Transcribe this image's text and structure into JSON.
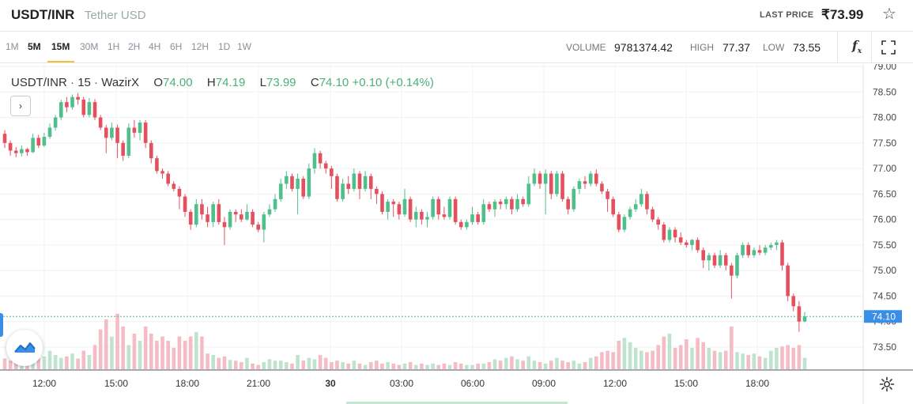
{
  "header": {
    "pair": "USDT/INR",
    "pair_name": "Tether USD",
    "last_price_label": "LAST PRICE",
    "last_price": "₹73.99"
  },
  "toolbar": {
    "timeframes": [
      "1M",
      "5M",
      "15M",
      "30M",
      "1H",
      "2H",
      "4H",
      "6H",
      "12H",
      "1D",
      "1W"
    ],
    "selected": [
      "5M",
      "15M"
    ],
    "volume_label": "VOLUME",
    "volume": "9781374.42",
    "high_label": "HIGH",
    "high": "77.37",
    "low_label": "LOW",
    "low": "73.55",
    "fx_label": "f"
  },
  "legend": {
    "symbol": "USDT/INR",
    "interval": "15",
    "exchange": "WazirX",
    "o_label": "O",
    "o": "74.00",
    "h_label": "H",
    "h": "74.19",
    "l_label": "L",
    "l": "73.99",
    "c_label": "C",
    "c": "74.10",
    "change": "+0.10 (+0.14%)",
    "collapse": "›"
  },
  "colors": {
    "up": "#4fbf8b",
    "down": "#e5505e",
    "up_vol": "#bfe3cf",
    "down_vol": "#f4bcc4",
    "price_line": "#4fbf8b",
    "price_tag": "#3a8ee6"
  },
  "chart_data": {
    "type": "candlestick",
    "y_axis_ticks": [
      "79.00",
      "78.50",
      "78.00",
      "77.50",
      "77.00",
      "76.50",
      "76.00",
      "75.50",
      "75.00",
      "74.50",
      "74.00",
      "73.50"
    ],
    "ylim": [
      73.0,
      79.0
    ],
    "x_axis_ticks": [
      "12:00",
      "15:00",
      "18:00",
      "21:00",
      "30",
      "03:00",
      "06:00",
      "09:00",
      "12:00",
      "15:00",
      "18:00"
    ],
    "current_price": "74.10",
    "candles": [
      [
        77.68,
        77.5,
        77.75,
        77.4,
        0.15
      ],
      [
        77.5,
        77.35,
        77.55,
        77.25,
        0.12
      ],
      [
        77.35,
        77.3,
        77.42,
        77.22,
        0.14
      ],
      [
        77.3,
        77.38,
        77.45,
        77.24,
        0.18
      ],
      [
        77.38,
        77.32,
        77.4,
        77.25,
        0.12
      ],
      [
        77.32,
        77.6,
        77.68,
        77.3,
        0.22
      ],
      [
        77.6,
        77.45,
        77.66,
        77.4,
        0.15
      ],
      [
        77.45,
        77.62,
        77.7,
        77.42,
        0.18
      ],
      [
        77.62,
        77.8,
        77.88,
        77.58,
        0.26
      ],
      [
        77.8,
        78.0,
        78.05,
        77.74,
        0.2
      ],
      [
        78.0,
        78.3,
        78.35,
        77.95,
        0.16
      ],
      [
        78.3,
        78.2,
        78.4,
        78.1,
        0.18
      ],
      [
        78.2,
        78.4,
        78.45,
        78.15,
        0.22
      ],
      [
        78.4,
        78.35,
        78.48,
        78.25,
        0.15
      ],
      [
        78.35,
        78.05,
        78.4,
        78.0,
        0.26
      ],
      [
        78.05,
        78.3,
        78.38,
        78.0,
        0.2
      ],
      [
        78.3,
        78.0,
        78.36,
        77.95,
        0.34
      ],
      [
        78.0,
        77.8,
        78.05,
        77.75,
        0.56
      ],
      [
        77.8,
        77.6,
        77.85,
        77.3,
        0.7
      ],
      [
        77.6,
        77.8,
        77.9,
        77.55,
        0.46
      ],
      [
        77.8,
        77.5,
        77.86,
        77.2,
        0.78
      ],
      [
        77.5,
        77.25,
        77.55,
        77.15,
        0.6
      ],
      [
        77.25,
        77.8,
        77.88,
        77.2,
        0.34
      ],
      [
        77.8,
        77.7,
        77.95,
        77.6,
        0.5
      ],
      [
        77.7,
        77.9,
        77.95,
        77.55,
        0.4
      ],
      [
        77.9,
        77.5,
        77.95,
        77.4,
        0.6
      ],
      [
        77.5,
        77.2,
        77.55,
        77.1,
        0.5
      ],
      [
        77.2,
        76.95,
        77.25,
        76.9,
        0.4
      ],
      [
        76.95,
        76.9,
        77.0,
        76.8,
        0.46
      ],
      [
        76.9,
        76.7,
        76.95,
        76.65,
        0.4
      ],
      [
        76.7,
        76.6,
        76.75,
        76.55,
        0.3
      ],
      [
        76.6,
        76.45,
        76.65,
        76.2,
        0.46
      ],
      [
        76.45,
        76.15,
        76.5,
        76.05,
        0.4
      ],
      [
        76.15,
        75.9,
        76.2,
        75.8,
        0.46
      ],
      [
        75.9,
        76.3,
        76.4,
        75.85,
        0.52
      ],
      [
        76.3,
        76.1,
        76.4,
        76.0,
        0.46
      ],
      [
        76.1,
        75.95,
        76.25,
        75.85,
        0.22
      ],
      [
        75.95,
        76.3,
        76.35,
        75.85,
        0.2
      ],
      [
        76.3,
        75.95,
        76.4,
        75.9,
        0.16
      ],
      [
        75.95,
        75.85,
        76.05,
        75.5,
        0.18
      ],
      [
        75.85,
        76.15,
        76.2,
        75.8,
        0.13
      ],
      [
        76.15,
        76.1,
        76.2,
        75.95,
        0.12
      ],
      [
        76.1,
        76.0,
        76.2,
        75.95,
        0.1
      ],
      [
        76.0,
        76.15,
        76.3,
        75.98,
        0.16
      ],
      [
        76.15,
        75.9,
        76.2,
        75.85,
        0.08
      ],
      [
        75.9,
        75.8,
        75.95,
        75.75,
        0.06
      ],
      [
        75.8,
        76.1,
        76.15,
        75.55,
        0.1
      ],
      [
        76.1,
        76.2,
        76.3,
        76.05,
        0.14
      ],
      [
        76.2,
        76.4,
        76.5,
        76.15,
        0.12
      ],
      [
        76.4,
        76.7,
        76.8,
        76.35,
        0.12
      ],
      [
        76.7,
        76.85,
        76.95,
        76.6,
        0.1
      ],
      [
        76.85,
        76.6,
        76.9,
        76.55,
        0.08
      ],
      [
        76.6,
        76.8,
        76.9,
        76.1,
        0.2
      ],
      [
        76.8,
        76.45,
        76.85,
        76.4,
        0.12
      ],
      [
        76.45,
        77.0,
        77.1,
        76.4,
        0.16
      ],
      [
        77.0,
        77.3,
        77.4,
        76.9,
        0.14
      ],
      [
        77.3,
        77.1,
        77.35,
        77.0,
        0.2
      ],
      [
        77.1,
        77.0,
        77.15,
        76.9,
        0.16
      ],
      [
        77.0,
        76.85,
        77.05,
        76.6,
        0.1
      ],
      [
        76.85,
        76.4,
        76.9,
        76.35,
        0.12
      ],
      [
        76.4,
        76.7,
        76.8,
        76.35,
        0.1
      ],
      [
        76.7,
        76.6,
        76.85,
        76.5,
        0.08
      ],
      [
        76.6,
        76.9,
        77.0,
        76.55,
        0.12
      ],
      [
        76.9,
        76.6,
        76.95,
        76.4,
        0.08
      ],
      [
        76.6,
        76.85,
        76.95,
        76.55,
        0.06
      ],
      [
        76.85,
        76.6,
        76.9,
        76.4,
        0.1
      ],
      [
        76.6,
        76.5,
        76.65,
        76.3,
        0.12
      ],
      [
        76.5,
        76.15,
        76.55,
        76.1,
        0.08
      ],
      [
        76.15,
        76.35,
        76.4,
        76.0,
        0.1
      ],
      [
        76.35,
        76.3,
        76.4,
        76.05,
        0.08
      ],
      [
        76.3,
        76.1,
        76.35,
        76.0,
        0.06
      ],
      [
        76.1,
        76.4,
        76.6,
        76.05,
        0.08
      ],
      [
        76.4,
        76.0,
        76.45,
        75.95,
        0.1
      ],
      [
        76.0,
        76.15,
        76.25,
        75.85,
        0.06
      ],
      [
        76.15,
        76.0,
        76.2,
        75.9,
        0.08
      ],
      [
        76.0,
        76.05,
        76.15,
        75.85,
        0.06
      ],
      [
        76.05,
        76.4,
        76.45,
        76.0,
        0.08
      ],
      [
        76.4,
        76.1,
        76.45,
        76.0,
        0.06
      ],
      [
        76.1,
        76.05,
        76.25,
        76.0,
        0.08
      ],
      [
        76.05,
        76.4,
        76.45,
        76.0,
        0.06
      ],
      [
        76.4,
        75.95,
        76.45,
        75.9,
        0.1
      ],
      [
        75.95,
        75.85,
        76.0,
        75.8,
        0.08
      ],
      [
        75.85,
        75.95,
        76.0,
        75.8,
        0.06
      ],
      [
        75.95,
        76.1,
        76.25,
        75.9,
        0.06
      ],
      [
        76.1,
        75.95,
        76.15,
        75.9,
        0.08
      ],
      [
        75.95,
        76.3,
        76.4,
        75.9,
        0.08
      ],
      [
        76.3,
        76.2,
        76.35,
        76.15,
        0.1
      ],
      [
        76.2,
        76.35,
        76.4,
        76.05,
        0.14
      ],
      [
        76.35,
        76.3,
        76.4,
        76.2,
        0.12
      ],
      [
        76.3,
        76.4,
        76.45,
        76.2,
        0.16
      ],
      [
        76.4,
        76.2,
        76.45,
        76.1,
        0.18
      ],
      [
        76.2,
        76.4,
        76.5,
        76.15,
        0.14
      ],
      [
        76.4,
        76.3,
        76.45,
        76.25,
        0.12
      ],
      [
        76.3,
        76.7,
        76.85,
        76.25,
        0.18
      ],
      [
        76.7,
        76.9,
        77.0,
        76.65,
        0.12
      ],
      [
        76.9,
        76.7,
        76.95,
        76.6,
        0.1
      ],
      [
        76.7,
        76.9,
        76.98,
        76.1,
        0.08
      ],
      [
        76.9,
        76.5,
        76.95,
        76.4,
        0.12
      ],
      [
        76.5,
        76.9,
        76.95,
        76.45,
        0.16
      ],
      [
        76.9,
        76.4,
        76.95,
        76.35,
        0.12
      ],
      [
        76.4,
        76.2,
        76.45,
        76.1,
        0.1
      ],
      [
        76.2,
        76.6,
        76.65,
        76.15,
        0.12
      ],
      [
        76.6,
        76.75,
        76.8,
        76.5,
        0.08
      ],
      [
        76.75,
        76.7,
        76.85,
        76.6,
        0.1
      ],
      [
        76.7,
        76.9,
        76.95,
        76.65,
        0.16
      ],
      [
        76.9,
        76.7,
        76.98,
        76.65,
        0.18
      ],
      [
        76.7,
        76.55,
        76.75,
        76.5,
        0.24
      ],
      [
        76.55,
        76.4,
        76.6,
        76.15,
        0.26
      ],
      [
        76.4,
        76.1,
        76.45,
        76.05,
        0.24
      ],
      [
        76.1,
        75.8,
        76.15,
        75.75,
        0.4
      ],
      [
        75.8,
        76.05,
        76.1,
        75.75,
        0.44
      ],
      [
        76.05,
        76.2,
        76.25,
        76.0,
        0.38
      ],
      [
        76.2,
        76.3,
        76.4,
        76.15,
        0.3
      ],
      [
        76.3,
        76.5,
        76.6,
        76.25,
        0.26
      ],
      [
        76.5,
        76.2,
        76.55,
        76.1,
        0.24
      ],
      [
        76.2,
        76.0,
        76.25,
        75.95,
        0.26
      ],
      [
        76.0,
        75.9,
        76.05,
        75.8,
        0.34
      ],
      [
        75.9,
        75.6,
        75.95,
        75.55,
        0.46
      ],
      [
        75.6,
        75.8,
        75.85,
        75.55,
        0.5
      ],
      [
        75.8,
        75.65,
        75.85,
        75.55,
        0.3
      ],
      [
        75.65,
        75.55,
        75.75,
        75.5,
        0.34
      ],
      [
        75.55,
        75.5,
        75.6,
        75.45,
        0.42
      ],
      [
        75.5,
        75.6,
        75.62,
        75.4,
        0.3
      ],
      [
        75.6,
        75.4,
        75.65,
        75.35,
        0.44
      ],
      [
        75.4,
        75.2,
        75.45,
        75.05,
        0.38
      ],
      [
        75.2,
        75.3,
        75.35,
        75.0,
        0.3
      ],
      [
        75.3,
        75.1,
        75.35,
        75.05,
        0.26
      ],
      [
        75.1,
        75.3,
        75.4,
        75.05,
        0.24
      ],
      [
        75.3,
        75.1,
        75.35,
        75.0,
        0.26
      ],
      [
        75.1,
        74.9,
        75.15,
        74.45,
        0.6
      ],
      [
        74.9,
        75.3,
        75.35,
        74.85,
        0.24
      ],
      [
        75.3,
        75.5,
        75.55,
        75.25,
        0.22
      ],
      [
        75.5,
        75.3,
        75.55,
        75.25,
        0.2
      ],
      [
        75.3,
        75.4,
        75.45,
        75.25,
        0.22
      ],
      [
        75.4,
        75.35,
        75.5,
        75.3,
        0.18
      ],
      [
        75.35,
        75.45,
        75.5,
        75.3,
        0.16
      ],
      [
        75.45,
        75.5,
        75.55,
        75.4,
        0.26
      ],
      [
        75.5,
        75.55,
        75.6,
        75.4,
        0.3
      ],
      [
        75.55,
        75.1,
        75.6,
        75.0,
        0.32
      ],
      [
        75.1,
        74.5,
        75.15,
        74.4,
        0.34
      ],
      [
        74.5,
        74.3,
        74.55,
        74.2,
        0.3
      ],
      [
        74.3,
        74.0,
        74.4,
        73.8,
        0.34
      ],
      [
        74.0,
        74.1,
        74.19,
        73.99,
        0.16
      ]
    ]
  },
  "settings_label": "settings"
}
